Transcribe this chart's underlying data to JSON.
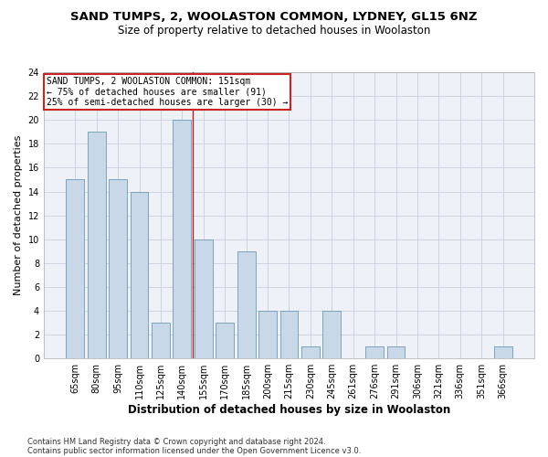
{
  "title": "SAND TUMPS, 2, WOOLASTON COMMON, LYDNEY, GL15 6NZ",
  "subtitle": "Size of property relative to detached houses in Woolaston",
  "xlabel": "Distribution of detached houses by size in Woolaston",
  "ylabel": "Number of detached properties",
  "categories": [
    "65sqm",
    "80sqm",
    "95sqm",
    "110sqm",
    "125sqm",
    "140sqm",
    "155sqm",
    "170sqm",
    "185sqm",
    "200sqm",
    "215sqm",
    "230sqm",
    "245sqm",
    "261sqm",
    "276sqm",
    "291sqm",
    "306sqm",
    "321sqm",
    "336sqm",
    "351sqm",
    "366sqm"
  ],
  "values": [
    15,
    19,
    15,
    14,
    3,
    20,
    10,
    3,
    9,
    4,
    4,
    1,
    4,
    0,
    1,
    1,
    0,
    0,
    0,
    0,
    1
  ],
  "bar_color": "#c8d8e8",
  "bar_edge_color": "#7099b0",
  "grid_color": "#c8d0dc",
  "annotation_line_color": "#aa2222",
  "annotation_box_text": "SAND TUMPS, 2 WOOLASTON COMMON: 151sqm\n← 75% of detached houses are smaller (91)\n25% of semi-detached houses are larger (30) →",
  "annotation_box_color": "#ffffff",
  "annotation_box_edge_color": "#cc2222",
  "ylim": [
    0,
    24
  ],
  "yticks": [
    0,
    2,
    4,
    6,
    8,
    10,
    12,
    14,
    16,
    18,
    20,
    22,
    24
  ],
  "footer_line1": "Contains HM Land Registry data © Crown copyright and database right 2024.",
  "footer_line2": "Contains public sector information licensed under the Open Government Licence v3.0.",
  "background_color": "#ffffff",
  "plot_bg_color": "#eef2f8",
  "title_fontsize": 9.5,
  "subtitle_fontsize": 8.5,
  "tick_fontsize": 7,
  "ylabel_fontsize": 8,
  "xlabel_fontsize": 8.5,
  "annotation_fontsize": 7,
  "footer_fontsize": 6
}
